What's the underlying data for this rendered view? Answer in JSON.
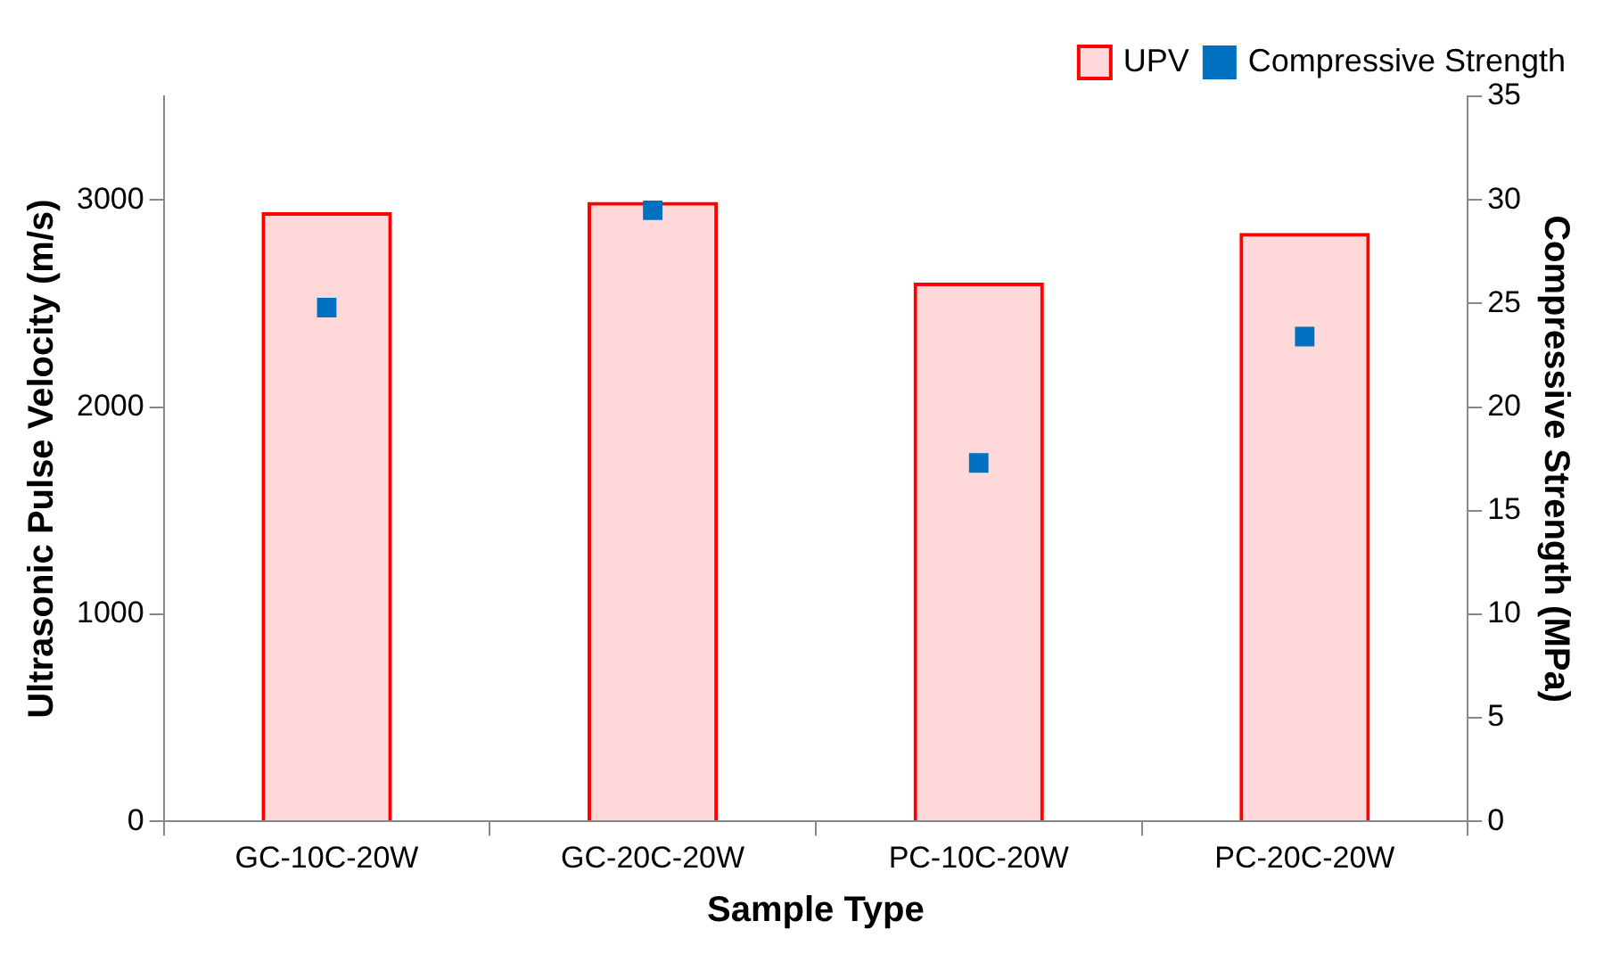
{
  "chart_data": {
    "type": "bar",
    "xlabel": "Sample Type",
    "ylabel": "Ultrasonic Pulse Velocity (m/s)",
    "y2label": "Compressive Strength (MPa)",
    "categories": [
      "GC-10C-20W",
      "GC-20C-20W",
      "PC-10C-20W",
      "PC-20C-20W"
    ],
    "series": [
      {
        "name": "UPV",
        "color": "#ff0000",
        "values": [
          2940,
          2990,
          2600,
          2840
        ]
      },
      {
        "name": "Compressive Strength",
        "type": "scatter",
        "axis": "y2",
        "color": "#0070c0",
        "values": [
          24.8,
          29.5,
          17.3,
          23.4
        ]
      }
    ],
    "ylim": [
      0,
      3500
    ],
    "yticks": [
      0,
      1000,
      2000,
      3000
    ],
    "y2lim": [
      0,
      35
    ],
    "y2ticks": [
      0,
      5,
      10,
      15,
      20,
      25,
      30,
      35
    ],
    "marker": "square",
    "grid": false,
    "legend": "top right"
  }
}
